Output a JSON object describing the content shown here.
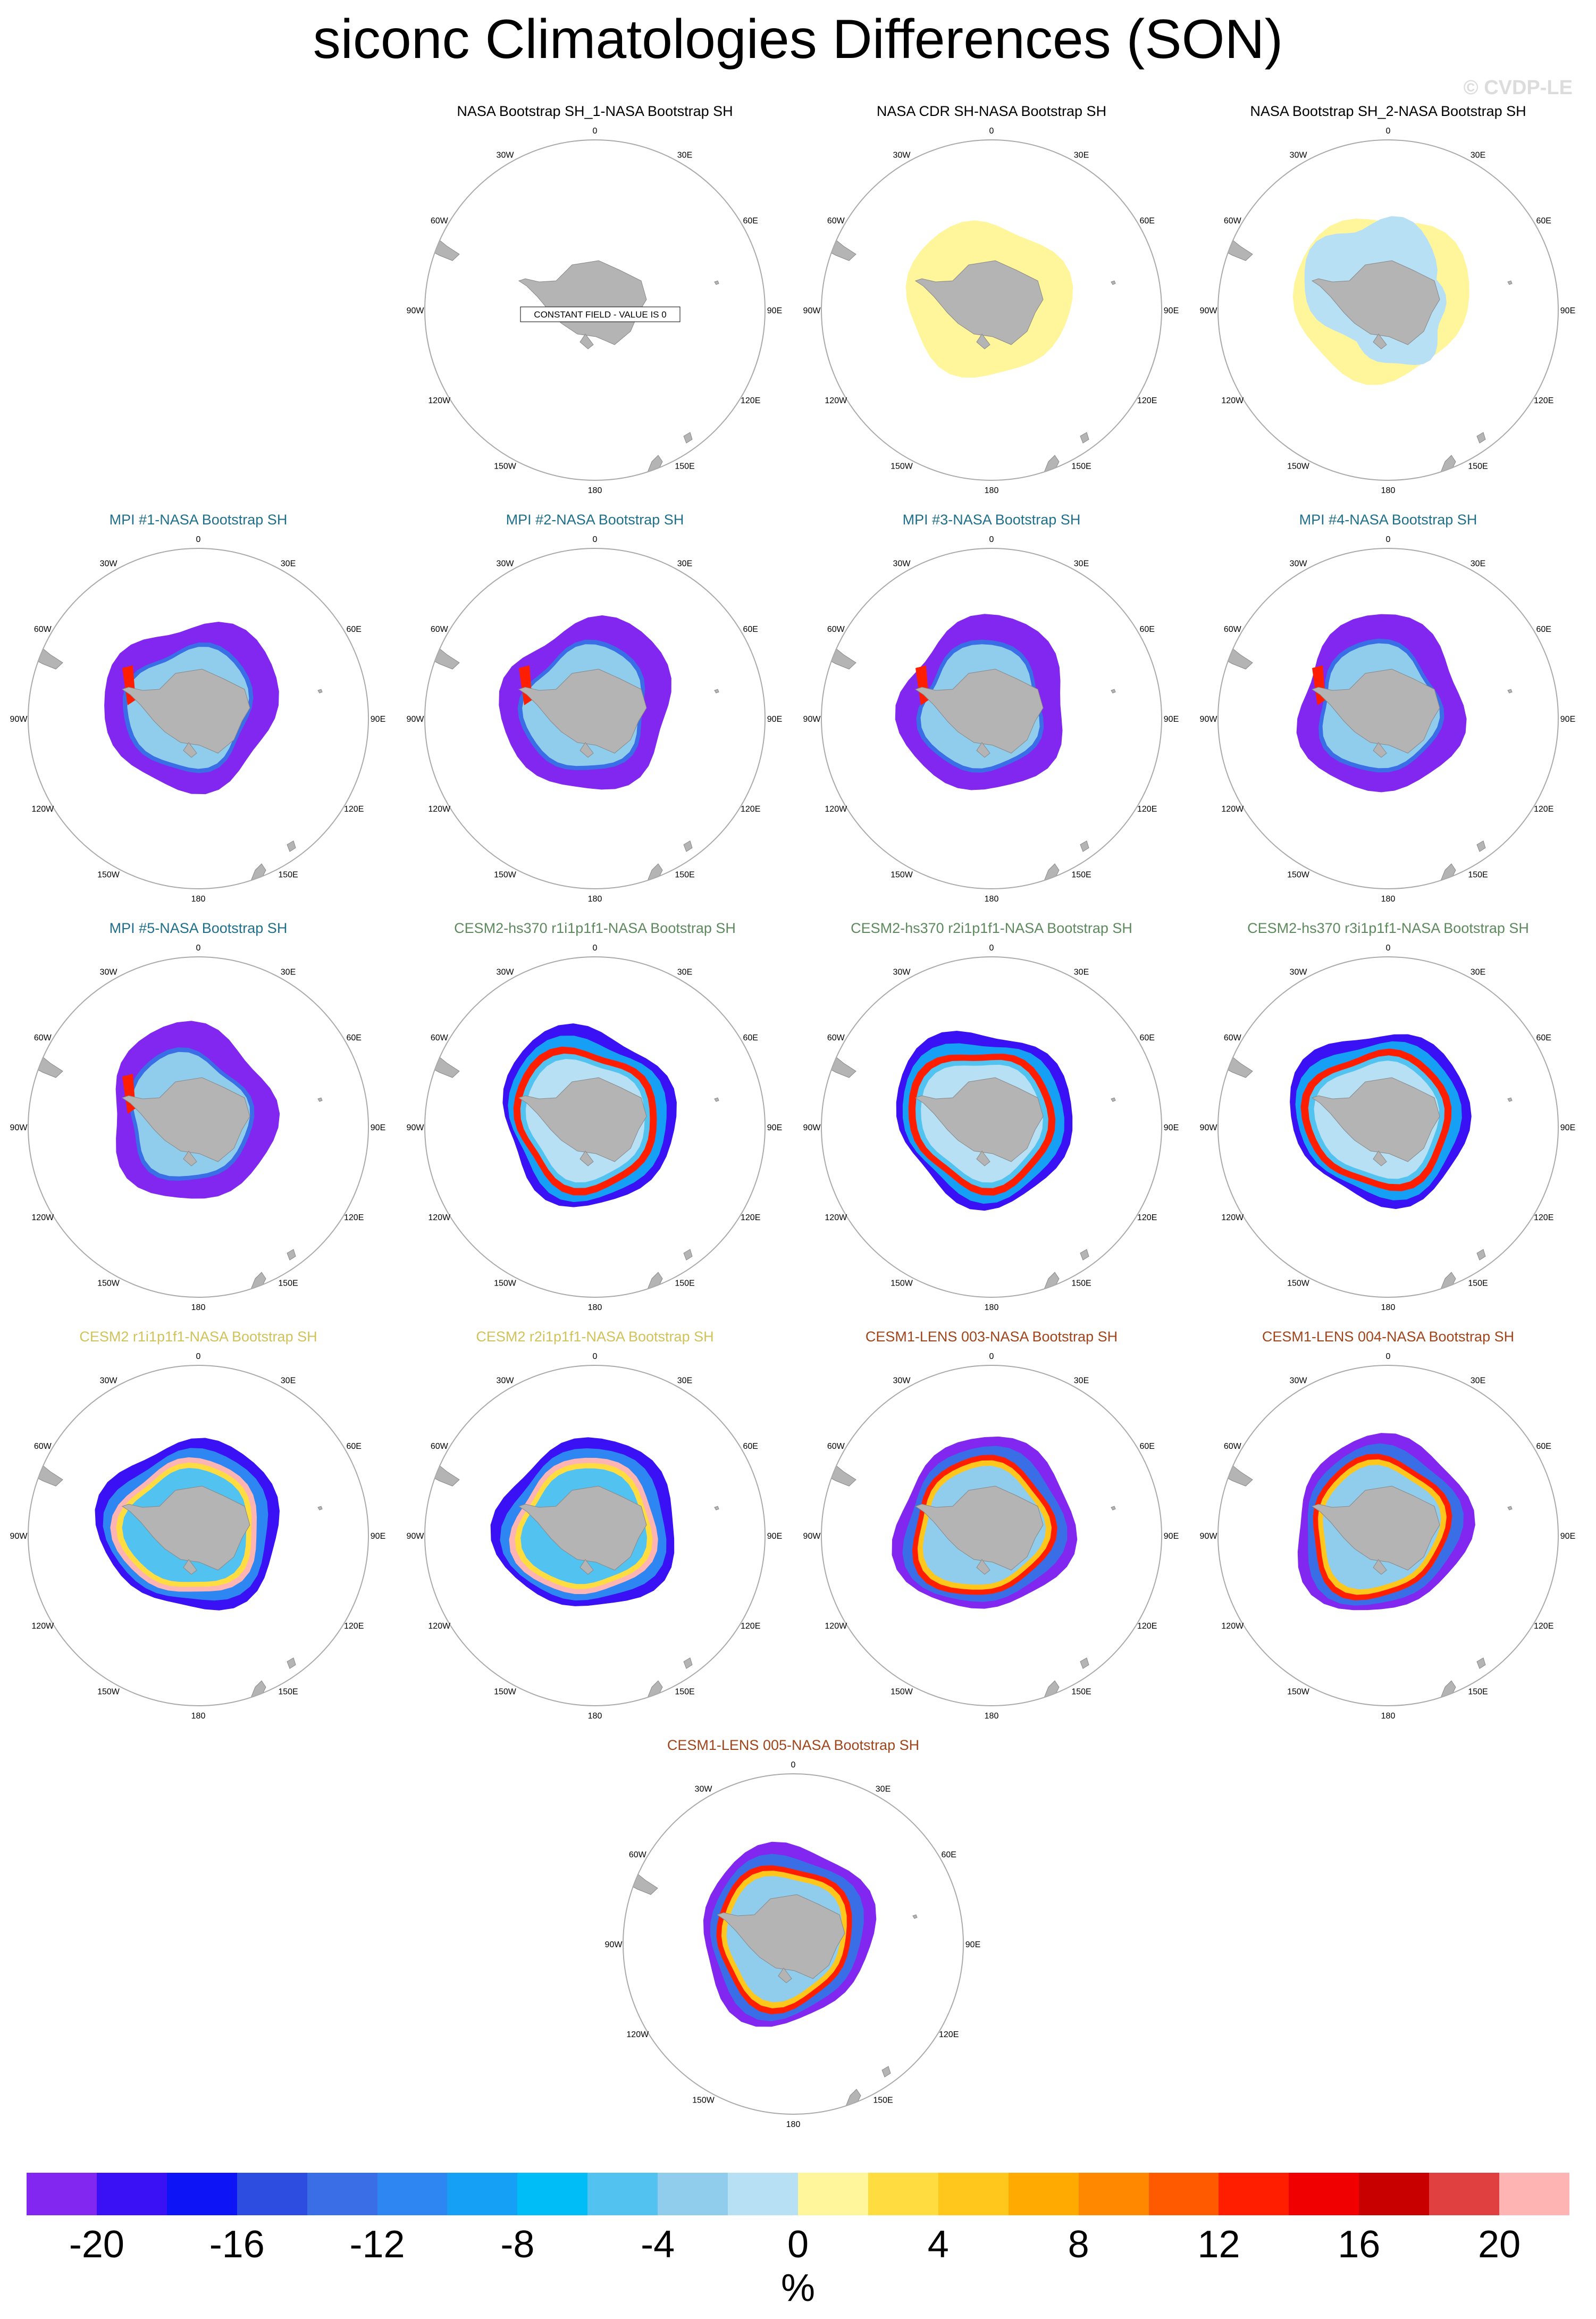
{
  "title": "siconc Climatologies Differences (SON)",
  "watermark": "© CVDP-LE",
  "constant_field_text": "CONSTANT FIELD - VALUE IS 0",
  "lon_labels": {
    "l0": "0",
    "l30e": "30E",
    "l60e": "60E",
    "l90e": "90E",
    "l120e": "120E",
    "l150e": "150E",
    "l180": "180",
    "l150w": "150W",
    "l120w": "120W",
    "l90w": "90W",
    "l60w": "60W",
    "l30w": "30W"
  },
  "panels": [
    {
      "title": "NASA Bootstrap SH_1-NASA Bootstrap SH",
      "title_color": "#000000",
      "pattern": "constant"
    },
    {
      "title": "NASA CDR SH-NASA Bootstrap SH",
      "title_color": "#000000",
      "pattern": "cdr"
    },
    {
      "title": "NASA Bootstrap SH_2-NASA Bootstrap SH",
      "title_color": "#000000",
      "pattern": "bs2"
    },
    {
      "title": "MPI #1-NASA Bootstrap SH",
      "title_color": "#1f6f8b",
      "pattern": "mpi"
    },
    {
      "title": "MPI #2-NASA Bootstrap SH",
      "title_color": "#1f6f8b",
      "pattern": "mpi"
    },
    {
      "title": "MPI #3-NASA Bootstrap SH",
      "title_color": "#1f6f8b",
      "pattern": "mpi"
    },
    {
      "title": "MPI #4-NASA Bootstrap SH",
      "title_color": "#1f6f8b",
      "pattern": "mpi"
    },
    {
      "title": "MPI #5-NASA Bootstrap SH",
      "title_color": "#1f6f8b",
      "pattern": "mpi"
    },
    {
      "title": "CESM2-hs370 r1i1p1f1-NASA Bootstrap SH",
      "title_color": "#5d8a5d",
      "pattern": "hs370"
    },
    {
      "title": "CESM2-hs370 r2i1p1f1-NASA Bootstrap SH",
      "title_color": "#5d8a5d",
      "pattern": "hs370"
    },
    {
      "title": "CESM2-hs370 r3i1p1f1-NASA Bootstrap SH",
      "title_color": "#5d8a5d",
      "pattern": "hs370"
    },
    {
      "title": "CESM2 r1i1p1f1-NASA Bootstrap SH",
      "title_color": "#d2c25a",
      "pattern": "cesm2"
    },
    {
      "title": "CESM2 r2i1p1f1-NASA Bootstrap SH",
      "title_color": "#d2c25a",
      "pattern": "cesm2"
    },
    {
      "title": "CESM1-LENS 003-NASA Bootstrap SH",
      "title_color": "#a0451b",
      "pattern": "lens"
    },
    {
      "title": "CESM1-LENS 004-NASA Bootstrap SH",
      "title_color": "#a0451b",
      "pattern": "lens"
    },
    {
      "title": "CESM1-LENS 005-NASA Bootstrap SH",
      "title_color": "#a0451b",
      "pattern": "lens"
    }
  ],
  "colorbar": {
    "colors": [
      "#8127f0",
      "#3a10f5",
      "#0d14f5",
      "#2d4de0",
      "#3a6ee6",
      "#2e86f2",
      "#16a0f5",
      "#00bcf7",
      "#52c2f0",
      "#90cdec",
      "#b8e0f4",
      "#fff59b",
      "#ffdd40",
      "#ffc61c",
      "#ffaa00",
      "#ff8800",
      "#ff5a00",
      "#ff1e00",
      "#f00000",
      "#c80000",
      "#e04040",
      "#ffb4b4"
    ],
    "labels": [
      "-20",
      "-16",
      "-12",
      "-8",
      "-4",
      "0",
      "4",
      "8",
      "12",
      "16",
      "20"
    ],
    "unit": "%"
  }
}
